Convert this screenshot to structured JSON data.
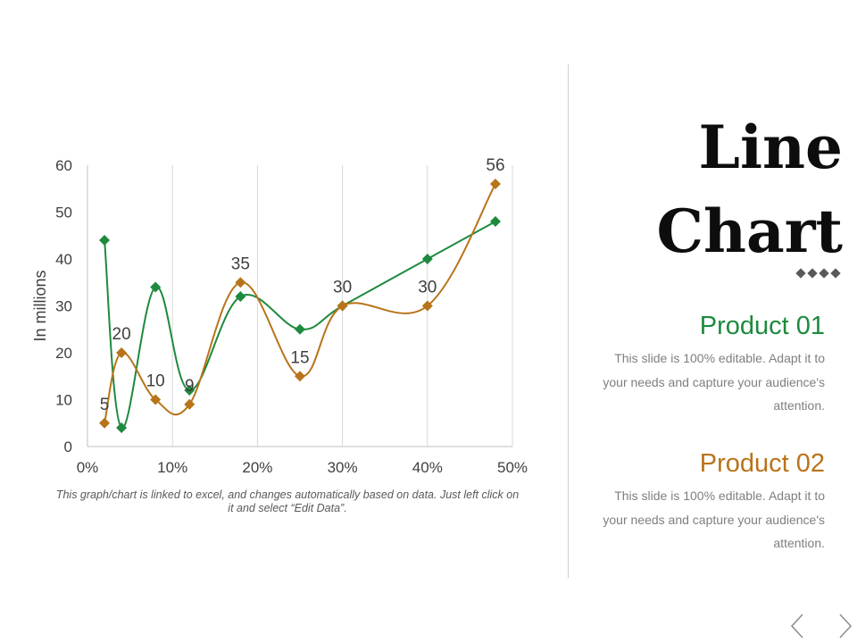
{
  "slide": {
    "title_line1": "Line",
    "title_line2": "Chart",
    "caption": "This graph/chart is linked to excel, and changes automatically based on data. Just left click on it and select “Edit Data”.",
    "products": [
      {
        "title": "Product 01",
        "description": "This slide is 100% editable. Adapt it to your needs and capture your audience's attention.",
        "color": "#1E8A3E"
      },
      {
        "title": "Product 02",
        "description": "This slide is 100% editable. Adapt it to your needs and capture your audience's attention.",
        "color": "#B8741A"
      }
    ],
    "nav": {
      "prev_icon": "chevron-left-icon",
      "next_icon": "chevron-right-icon"
    }
  },
  "chart_data": {
    "type": "scatter",
    "ylabel": "In millions",
    "xlim": [
      0,
      50
    ],
    "ylim": [
      0,
      60
    ],
    "x_ticks": [
      0,
      10,
      20,
      30,
      40,
      50
    ],
    "x_tick_labels": [
      "0%",
      "10%",
      "20%",
      "30%",
      "40%",
      "50%"
    ],
    "y_ticks": [
      0,
      10,
      20,
      30,
      40,
      50,
      60
    ],
    "y_tick_labels": [
      "0",
      "10",
      "20",
      "30",
      "40",
      "50",
      "60"
    ],
    "vertical_gridlines": true,
    "smoothed_lines": true,
    "series": [
      {
        "color": "#1E8A3E",
        "marker": "diamond",
        "points": [
          {
            "x": 2,
            "y": 44
          },
          {
            "x": 4,
            "y": 4
          },
          {
            "x": 8,
            "y": 34
          },
          {
            "x": 12,
            "y": 12
          },
          {
            "x": 18,
            "y": 32
          },
          {
            "x": 25,
            "y": 25
          },
          {
            "x": 30,
            "y": 30
          },
          {
            "x": 40,
            "y": 40
          },
          {
            "x": 48,
            "y": 48
          }
        ]
      },
      {
        "color": "#B8741A",
        "marker": "diamond",
        "show_data_labels": true,
        "points": [
          {
            "x": 2,
            "y": 5,
            "label": "5"
          },
          {
            "x": 4,
            "y": 20,
            "label": "20"
          },
          {
            "x": 8,
            "y": 10,
            "label": "10"
          },
          {
            "x": 12,
            "y": 9,
            "label": "9"
          },
          {
            "x": 18,
            "y": 35,
            "label": "35"
          },
          {
            "x": 25,
            "y": 15,
            "label": "15"
          },
          {
            "x": 30,
            "y": 30,
            "label": "30"
          },
          {
            "x": 40,
            "y": 30,
            "label": "30"
          },
          {
            "x": 48,
            "y": 56,
            "label": "56"
          }
        ]
      }
    ]
  }
}
